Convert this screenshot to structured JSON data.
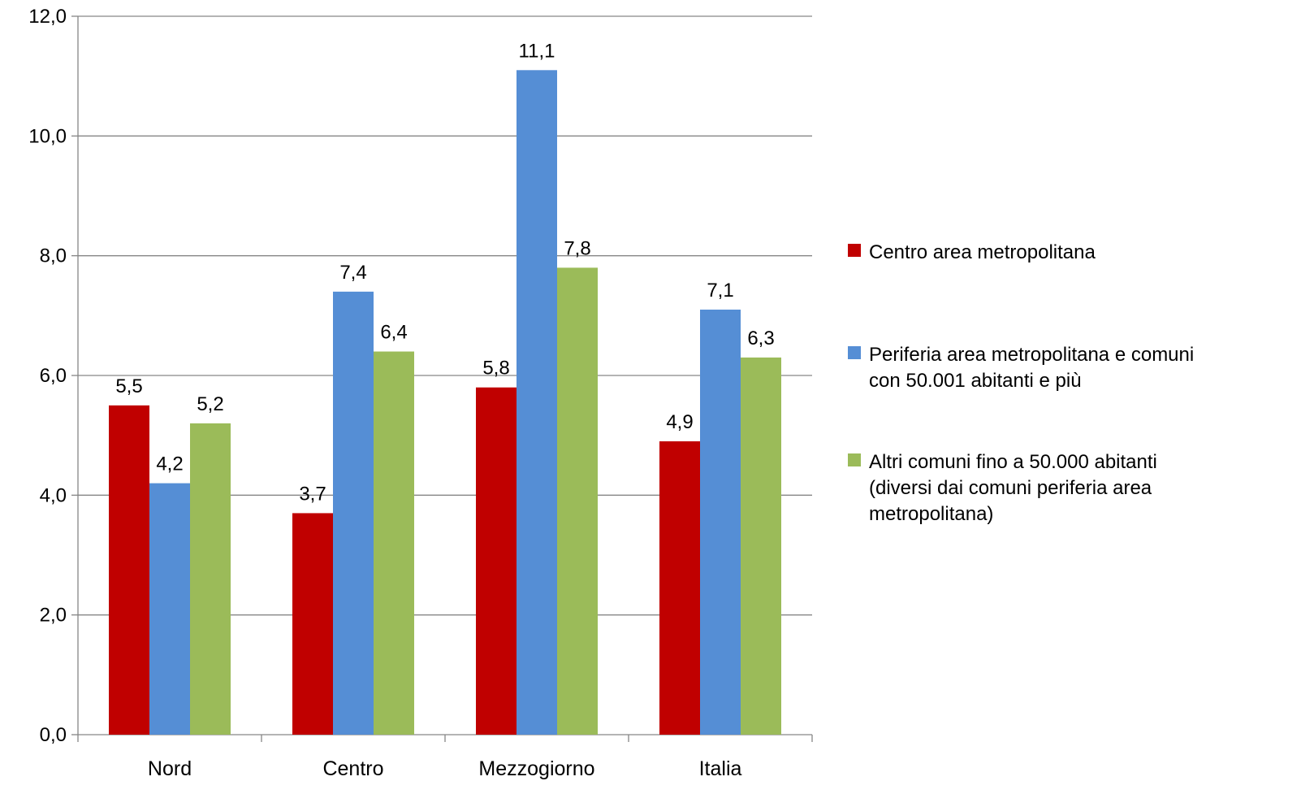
{
  "chart_data": {
    "type": "bar",
    "title": "",
    "xlabel": "",
    "ylabel": "",
    "ylim": [
      0,
      12
    ],
    "ytick_step": 2,
    "ytick_labels": [
      "0,0",
      "2,0",
      "4,0",
      "6,0",
      "8,0",
      "10,0",
      "12,0"
    ],
    "grid": true,
    "legend_position": "right",
    "categories": [
      "Nord",
      "Centro",
      "Mezzogiorno",
      "Italia"
    ],
    "series": [
      {
        "name": "Centro area metropolitana",
        "color": "#C00000",
        "values": [
          5.5,
          3.7,
          5.8,
          4.9
        ],
        "labels": [
          "5,5",
          "3,7",
          "5,8",
          "4,9"
        ]
      },
      {
        "name": "Periferia area metropolitana e comuni con 50.001 abitanti e più",
        "legend_lines": [
          "Periferia area metropolitana e comuni",
          "con 50.001 abitanti e più"
        ],
        "color": "#558ED5",
        "values": [
          4.2,
          7.4,
          11.1,
          7.1
        ],
        "labels": [
          "4,2",
          "7,4",
          "11,1",
          "7,1"
        ]
      },
      {
        "name": "Altri comuni fino a 50.000 abitanti (diversi dai comuni periferia area metropolitana)",
        "legend_lines": [
          "Altri comuni fino a 50.000 abitanti",
          "(diversi dai comuni periferia area",
          "metropolitana)"
        ],
        "color": "#9BBB59",
        "values": [
          5.2,
          6.4,
          7.8,
          6.3
        ],
        "labels": [
          "5,2",
          "6,4",
          "7,8",
          "6,3"
        ]
      }
    ]
  }
}
